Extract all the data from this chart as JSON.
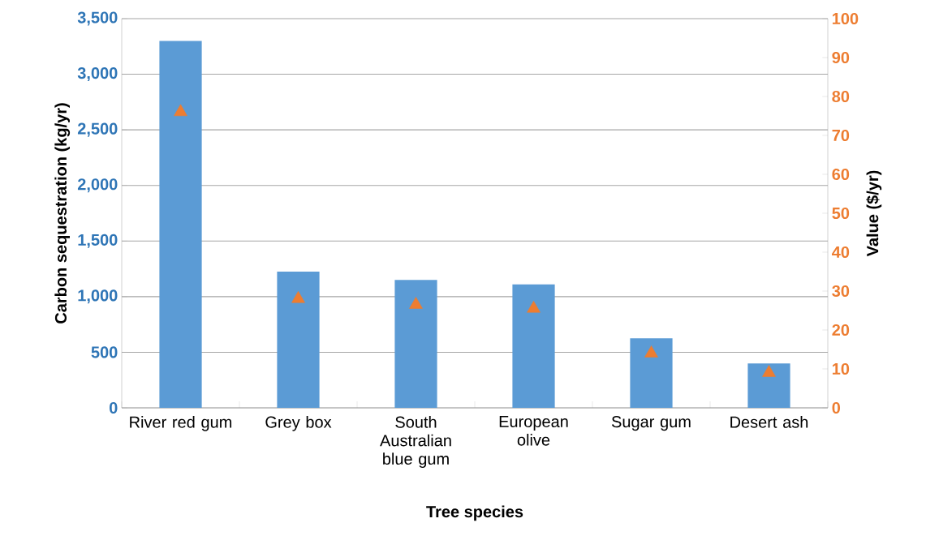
{
  "chart_data": {
    "type": "bar",
    "xlabel": "Tree species",
    "ylabel": "Carbon sequestration (kg/yr)",
    "y2label": "Value ($/yr)",
    "categories": [
      "River red gum",
      "Grey box",
      "South Australian blue gum",
      "European olive",
      "Sugar gum",
      "Desert ash"
    ],
    "series": [
      {
        "color": "#5b9bd5",
        "values": [
          3300,
          1225,
          1150,
          1110,
          625,
          400
        ]
      },
      {
        "type": "scatter",
        "axis": "y2",
        "marker": "triangle",
        "color": "#ed7d31",
        "values": [
          76,
          28,
          26.5,
          25.5,
          14,
          9
        ]
      }
    ],
    "ylim": [
      0,
      3500
    ],
    "yticks": [
      0,
      500,
      {
        "value": 1000,
        "label": "1,000"
      },
      {
        "value": 1500,
        "label": "1,500"
      },
      {
        "value": 2000,
        "label": "2,000"
      },
      {
        "value": 2500,
        "label": "2,500"
      },
      {
        "value": 3000,
        "label": "3,000"
      },
      {
        "value": 3500,
        "label": "3,500"
      }
    ],
    "y2lim": [
      0,
      100
    ],
    "y2ticks": [
      0,
      10,
      20,
      30,
      40,
      50,
      60,
      70,
      80,
      90,
      100
    ],
    "grid": "y"
  }
}
